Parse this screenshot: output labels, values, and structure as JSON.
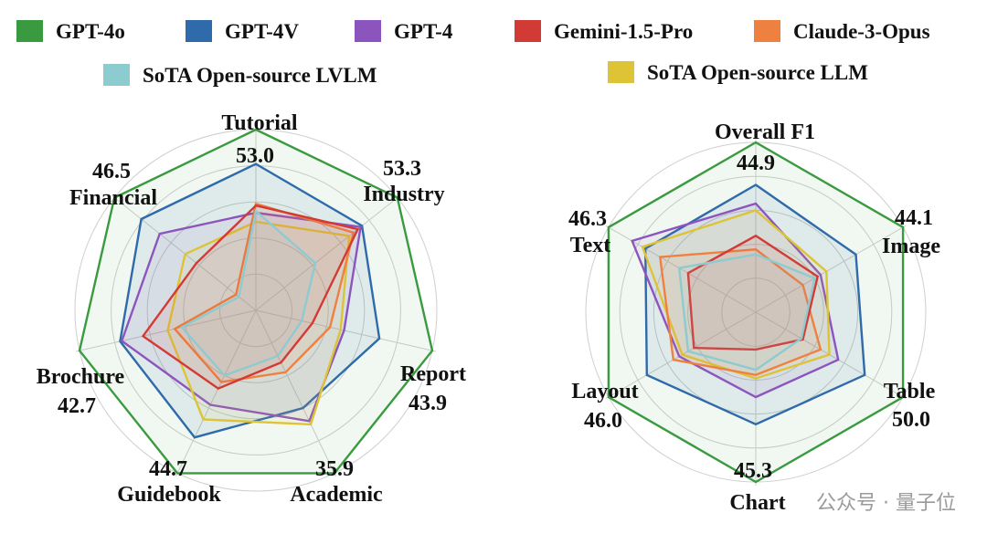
{
  "colors": {
    "GPT-4o": "#3a9a3f",
    "GPT-4V": "#2f6aab",
    "GPT-4": "#8c55bd",
    "Gemini-1.5-Pro": "#d23b35",
    "Claude-3-Opus": "#ee8140",
    "SoTA Open-source LVLM": "#8ccbd0",
    "SoTA Open-source LLM": "#dcc435"
  },
  "legend": {
    "row1": [
      "GPT-4o",
      "GPT-4V",
      "GPT-4",
      "Gemini-1.5-Pro",
      "Claude-3-Opus"
    ],
    "row2": [
      "SoTA Open-source LVLM",
      "SoTA Open-source LLM"
    ]
  },
  "watermark": "公众号 · 量子位",
  "chart_data": [
    {
      "type": "radar",
      "axes": [
        "Tutorial",
        "Industry",
        "Report",
        "Academic",
        "Guidebook",
        "Brochure",
        "Financial"
      ],
      "max_labels": [
        "53.0",
        "53.3",
        "43.9",
        "35.9",
        "44.7",
        "42.7",
        "46.5"
      ],
      "grid": true,
      "series": [
        {
          "name": "GPT-4o",
          "values": [
            1.0,
            1.0,
            1.0,
            1.0,
            1.0,
            1.0,
            1.0
          ]
        },
        {
          "name": "GPT-4V",
          "values": [
            0.81,
            0.75,
            0.7,
            0.6,
            0.78,
            0.77,
            0.81
          ]
        },
        {
          "name": "GPT-4",
          "values": [
            0.54,
            0.74,
            0.5,
            0.68,
            0.58,
            0.76,
            0.68
          ]
        },
        {
          "name": "Gemini-1.5-Pro",
          "values": [
            0.58,
            0.72,
            0.32,
            0.32,
            0.48,
            0.64,
            0.42
          ]
        },
        {
          "name": "Claude-3-Opus",
          "values": [
            0.59,
            0.69,
            0.42,
            0.38,
            0.44,
            0.46,
            0.14
          ]
        },
        {
          "name": "SoTA Open-source LVLM",
          "values": [
            0.55,
            0.42,
            0.26,
            0.28,
            0.4,
            0.42,
            0.12
          ]
        },
        {
          "name": "SoTA Open-source LLM",
          "values": [
            0.49,
            0.66,
            0.48,
            0.7,
            0.67,
            0.5,
            0.5
          ]
        }
      ]
    },
    {
      "type": "radar",
      "axes": [
        "Overall F1",
        "Image",
        "Table",
        "Chart",
        "Layout",
        "Text"
      ],
      "max_labels": [
        "44.9",
        "44.1",
        "50.0",
        "45.3",
        "46.0",
        "46.3"
      ],
      "grid": true,
      "series": [
        {
          "name": "GPT-4o",
          "values": [
            1.0,
            1.0,
            1.0,
            1.0,
            1.0,
            1.0
          ]
        },
        {
          "name": "GPT-4V",
          "values": [
            0.75,
            0.68,
            0.74,
            0.66,
            0.74,
            0.75
          ]
        },
        {
          "name": "GPT-4",
          "values": [
            0.64,
            0.44,
            0.56,
            0.5,
            0.52,
            0.84
          ]
        },
        {
          "name": "Gemini-1.5-Pro",
          "values": [
            0.45,
            0.42,
            0.32,
            0.22,
            0.42,
            0.46
          ]
        },
        {
          "name": "Claude-3-Opus",
          "values": [
            0.37,
            0.32,
            0.44,
            0.37,
            0.56,
            0.65
          ]
        },
        {
          "name": "SoTA Open-source LVLM",
          "values": [
            0.34,
            0.4,
            0.31,
            0.34,
            0.46,
            0.52
          ]
        },
        {
          "name": "SoTA Open-source LLM",
          "values": [
            0.6,
            0.48,
            0.5,
            0.39,
            0.5,
            0.77
          ]
        }
      ]
    }
  ]
}
